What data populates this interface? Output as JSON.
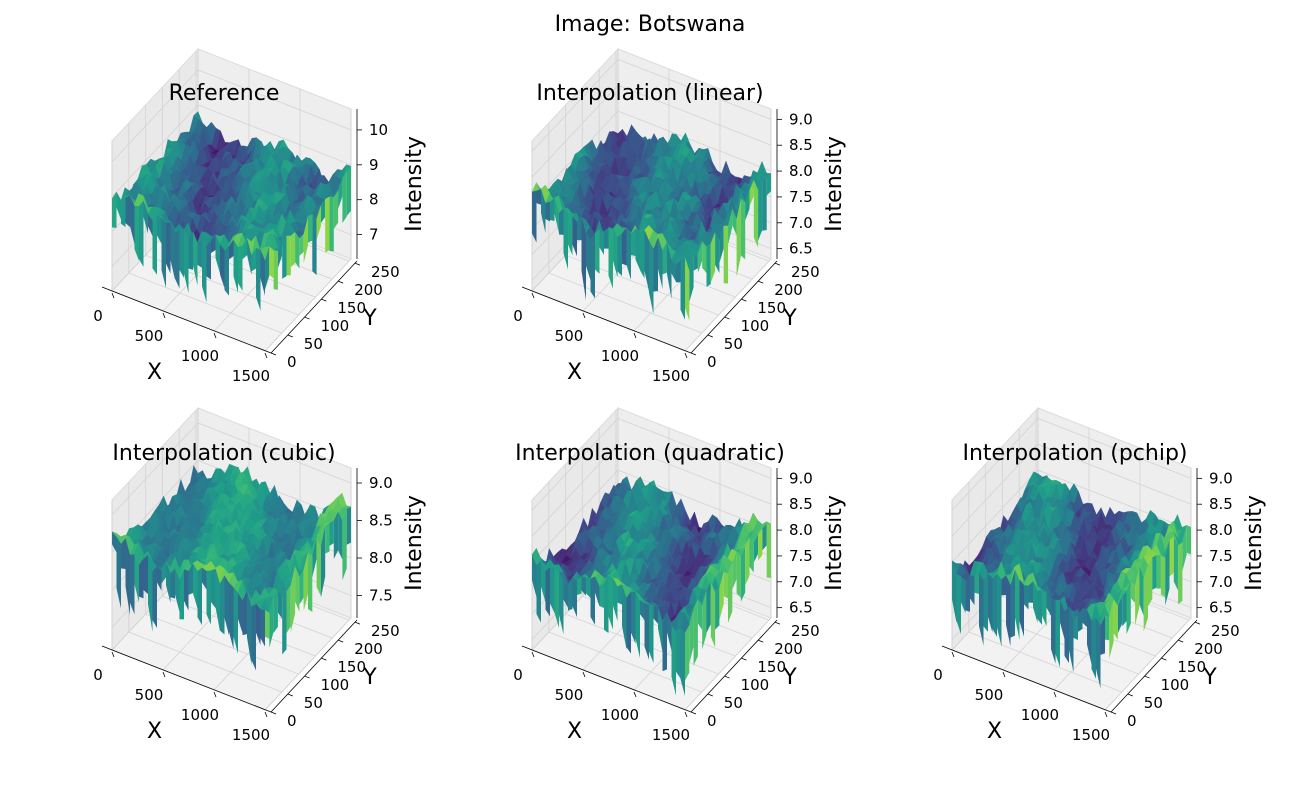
{
  "figure": {
    "suptitle": "Image: Botswana"
  },
  "chart_data": [
    {
      "type": "surface",
      "title": "Reference",
      "xlabel": "X",
      "ylabel": "Y",
      "zlabel": "Intensity",
      "xticks": [
        "0",
        "500",
        "1000",
        "1500"
      ],
      "yticks": [
        "0",
        "50",
        "100",
        "150",
        "200",
        "250"
      ],
      "zticks": [
        "7",
        "8",
        "9",
        "10"
      ],
      "xlim": [
        0,
        1500
      ],
      "ylim": [
        0,
        256
      ],
      "zlim": [
        6.3,
        10.6
      ],
      "colormap": "viridis"
    },
    {
      "type": "surface",
      "title": "Interpolation (linear)",
      "xlabel": "X",
      "ylabel": "Y",
      "zlabel": "Intensity",
      "xticks": [
        "0",
        "500",
        "1000",
        "1500"
      ],
      "yticks": [
        "0",
        "50",
        "100",
        "150",
        "200",
        "250"
      ],
      "zticks": [
        "6.5",
        "7.0",
        "7.5",
        "8.0",
        "8.5",
        "9.0"
      ],
      "xlim": [
        0,
        1500
      ],
      "ylim": [
        0,
        256
      ],
      "zlim": [
        6.3,
        9.2
      ],
      "colormap": "viridis"
    },
    {
      "type": "surface",
      "title": "Interpolation (cubic)",
      "xlabel": "X",
      "ylabel": "Y",
      "zlabel": "Intensity",
      "xticks": [
        "0",
        "500",
        "1000",
        "1500"
      ],
      "yticks": [
        "0",
        "50",
        "100",
        "150",
        "200",
        "250"
      ],
      "zticks": [
        "7.5",
        "8.0",
        "8.5",
        "9.0"
      ],
      "xlim": [
        0,
        1500
      ],
      "ylim": [
        0,
        256
      ],
      "zlim": [
        7.2,
        9.2
      ],
      "colormap": "viridis"
    },
    {
      "type": "surface",
      "title": "Interpolation (quadratic)",
      "xlabel": "X",
      "ylabel": "Y",
      "zlabel": "Intensity",
      "xticks": [
        "0",
        "500",
        "1000",
        "1500"
      ],
      "yticks": [
        "0",
        "50",
        "100",
        "150",
        "200",
        "250"
      ],
      "zticks": [
        "6.5",
        "7.0",
        "7.5",
        "8.0",
        "8.5",
        "9.0"
      ],
      "xlim": [
        0,
        1500
      ],
      "ylim": [
        0,
        256
      ],
      "zlim": [
        6.3,
        9.2
      ],
      "colormap": "viridis"
    },
    {
      "type": "surface",
      "title": "Interpolation (pchip)",
      "xlabel": "X",
      "ylabel": "Y",
      "zlabel": "Intensity",
      "xticks": [
        "0",
        "500",
        "1000",
        "1500"
      ],
      "yticks": [
        "0",
        "50",
        "100",
        "150",
        "200",
        "250"
      ],
      "zticks": [
        "6.5",
        "7.0",
        "7.5",
        "8.0",
        "8.5",
        "9.0"
      ],
      "xlim": [
        0,
        1500
      ],
      "ylim": [
        0,
        256
      ],
      "zlim": [
        6.3,
        9.2
      ],
      "colormap": "viridis"
    }
  ]
}
